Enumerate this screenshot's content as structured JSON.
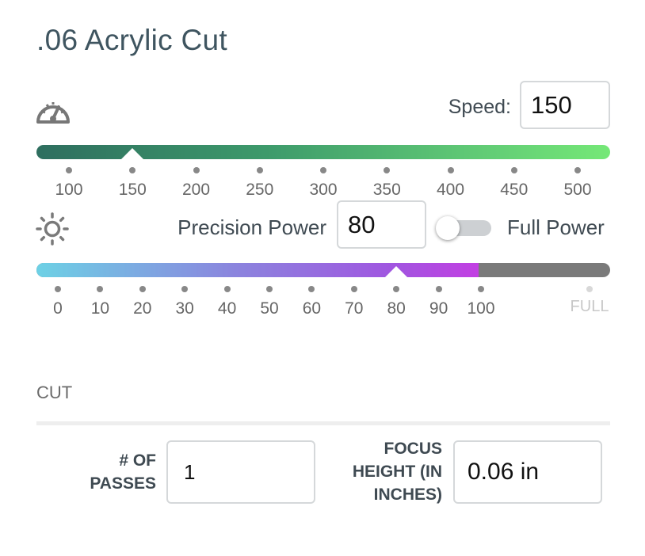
{
  "title": ".06 Acrylic Cut",
  "speed": {
    "icon": "speedometer-icon",
    "label": "Speed:",
    "value": "150",
    "ticks": [
      "100",
      "150",
      "200",
      "250",
      "300",
      "350",
      "400",
      "450",
      "500"
    ],
    "slider_value": 150,
    "colors": {
      "track_start": "#2e6e5f",
      "track_end": "#75e877"
    }
  },
  "power": {
    "icon": "sun-icon",
    "precision_label": "Precision Power",
    "value": "80",
    "full_power_label": "Full Power",
    "full_power_enabled": false,
    "ticks": [
      "0",
      "10",
      "20",
      "30",
      "40",
      "50",
      "60",
      "70",
      "80",
      "90",
      "100"
    ],
    "full_tick": "FULL",
    "slider_value": 80,
    "colors": {
      "track_start": "#6dd1e5",
      "track_end": "#c23fe2",
      "remainder": "#7a7a7a"
    }
  },
  "section": {
    "header": "CUT",
    "passes_label": "# OF PASSES",
    "passes_value": "1",
    "focus_label": "FOCUS HEIGHT (IN INCHES)",
    "focus_value": "0.06 in"
  }
}
